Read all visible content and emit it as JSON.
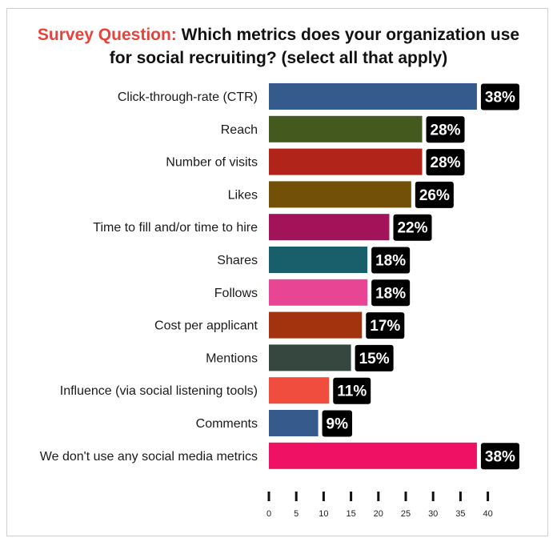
{
  "title": {
    "prefix": "Survey Question:",
    "line1": "Which metrics does your organization use",
    "line2": "for social recruiting? (select all that apply)",
    "prefix_color": "#e8433a"
  },
  "chart_data": {
    "type": "bar",
    "orientation": "horizontal",
    "title": "Survey Question: Which metrics does your organization use for social recruiting? (select all that apply)",
    "xlabel": "",
    "ylabel": "",
    "xlim": [
      0,
      40
    ],
    "x_ticks": [
      0,
      5,
      10,
      15,
      20,
      25,
      30,
      35,
      40
    ],
    "value_suffix": "%",
    "grid": false,
    "categories": [
      "Click-through-rate (CTR)",
      "Reach",
      "Number of visits",
      "Likes",
      "Time to fill and/or time to hire",
      "Shares",
      "Follows",
      "Cost per applicant",
      "Mentions",
      "Influence (via social listening tools)",
      "Comments",
      "We don't use any social media metrics"
    ],
    "values": [
      38,
      28,
      28,
      26,
      22,
      18,
      18,
      17,
      15,
      11,
      9,
      38
    ],
    "colors": [
      "#355a8c",
      "#44591d",
      "#b02419",
      "#735007",
      "#a3135a",
      "#195e6b",
      "#e84595",
      "#a3330e",
      "#36473f",
      "#f04d3f",
      "#375a8c",
      "#ee1164"
    ],
    "label_bg": "#000000"
  }
}
